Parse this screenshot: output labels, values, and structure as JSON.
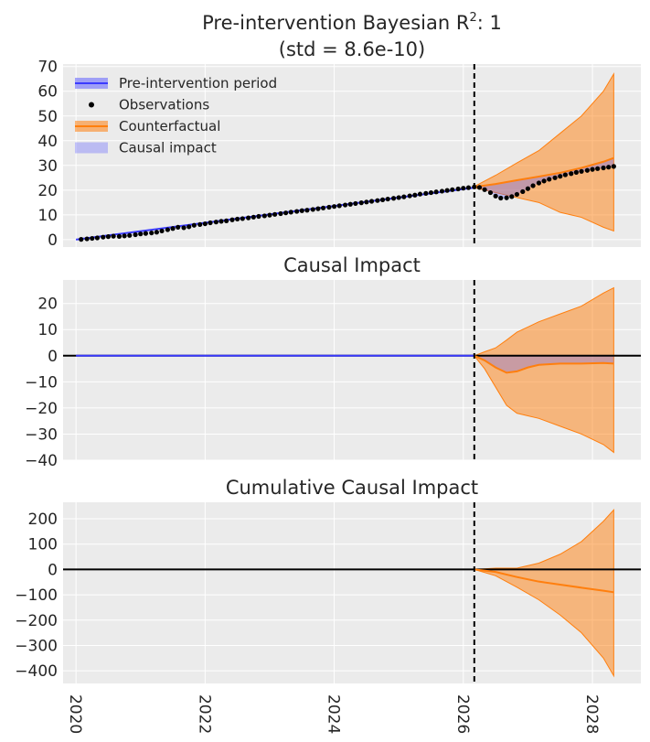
{
  "chart_data": [
    {
      "type": "line",
      "title_line1": "Pre-intervention Bayesian R",
      "title_sup": "2",
      "title_suffix": ": 1",
      "title_line2": "(std = 8.6e-10)",
      "xlim": [
        2019.8,
        2028.75
      ],
      "ylim": [
        -3,
        71
      ],
      "yticks": [
        0,
        10,
        20,
        30,
        40,
        50,
        60,
        70
      ],
      "intervention_x": 2026.17,
      "legend": {
        "position": "top-left",
        "entries": [
          "Pre-intervention period",
          "Observations",
          "Counterfactual",
          "Causal impact"
        ]
      },
      "series": [
        {
          "name": "Pre-intervention period",
          "x": [
            2020.0,
            2026.17
          ],
          "y": [
            0,
            21
          ],
          "color": "#3b3bff"
        },
        {
          "name": "Observations",
          "x": [
            2020.08,
            2020.17,
            2020.25,
            2020.33,
            2020.42,
            2020.5,
            2020.58,
            2020.67,
            2020.75,
            2020.83,
            2020.92,
            2021.0,
            2021.08,
            2021.17,
            2021.25,
            2021.33,
            2021.42,
            2021.5,
            2021.58,
            2021.67,
            2021.75,
            2021.83,
            2021.92,
            2022.0,
            2022.08,
            2022.17,
            2022.25,
            2022.33,
            2022.42,
            2022.5,
            2022.58,
            2022.67,
            2022.75,
            2022.83,
            2022.92,
            2023.0,
            2023.08,
            2023.17,
            2023.25,
            2023.33,
            2023.42,
            2023.5,
            2023.58,
            2023.67,
            2023.75,
            2023.83,
            2023.92,
            2024.0,
            2024.08,
            2024.17,
            2024.25,
            2024.33,
            2024.42,
            2024.5,
            2024.58,
            2024.67,
            2024.75,
            2024.83,
            2024.92,
            2025.0,
            2025.08,
            2025.17,
            2025.25,
            2025.33,
            2025.42,
            2025.5,
            2025.58,
            2025.67,
            2025.75,
            2025.83,
            2025.92,
            2026.0,
            2026.08,
            2026.17,
            2026.25,
            2026.33,
            2026.42,
            2026.5,
            2026.58,
            2026.67,
            2026.75,
            2026.83,
            2026.92,
            2027.0,
            2027.08,
            2027.17,
            2027.25,
            2027.33,
            2027.42,
            2027.5,
            2027.58,
            2027.67,
            2027.75,
            2027.83,
            2027.92,
            2028.0,
            2028.08,
            2028.17,
            2028.25,
            2028.33
          ],
          "y": [
            0.1,
            0.3,
            0.5,
            0.7,
            1.0,
            1.2,
            1.4,
            1.3,
            1.5,
            1.7,
            2.0,
            2.3,
            2.5,
            2.7,
            3.0,
            3.5,
            4.0,
            4.5,
            5.0,
            4.8,
            5.2,
            5.8,
            6.1,
            6.4,
            6.8,
            7.1,
            7.4,
            7.6,
            8.0,
            8.3,
            8.5,
            8.8,
            9.1,
            9.4,
            9.6,
            9.9,
            10.2,
            10.5,
            10.8,
            11.1,
            11.4,
            11.7,
            11.9,
            12.2,
            12.5,
            12.8,
            13.1,
            13.4,
            13.7,
            14.0,
            14.3,
            14.6,
            14.9,
            15.2,
            15.5,
            15.8,
            16.1,
            16.4,
            16.7,
            17.0,
            17.3,
            17.7,
            18.0,
            18.4,
            18.7,
            19.0,
            19.3,
            19.6,
            19.9,
            20.2,
            20.5,
            20.8,
            21.0,
            21.3,
            21.1,
            20.2,
            19.0,
            17.6,
            16.8,
            16.9,
            17.4,
            18.3,
            19.4,
            20.6,
            21.8,
            22.9,
            23.7,
            24.4,
            25.0,
            25.6,
            26.2,
            26.7,
            27.2,
            27.6,
            28.0,
            28.4,
            28.7,
            29.0,
            29.3,
            29.6
          ],
          "color": "#000000"
        },
        {
          "name": "Counterfactual",
          "x": [
            2026.17,
            2026.5,
            2026.83,
            2027.17,
            2027.5,
            2027.83,
            2028.17,
            2028.33
          ],
          "y": [
            21.3,
            22.5,
            24.0,
            25.5,
            27.0,
            29.0,
            31.5,
            33.0
          ],
          "lower": [
            21.0,
            19.0,
            17.0,
            15.0,
            11.0,
            9.0,
            5.0,
            3.5
          ],
          "upper": [
            21.5,
            26.0,
            31.0,
            36.0,
            43.0,
            50.0,
            60.0,
            67.0
          ],
          "color": "#ff7f0e"
        }
      ]
    },
    {
      "type": "line",
      "title": "Causal Impact",
      "xlim": [
        2019.8,
        2028.75
      ],
      "ylim": [
        -40,
        29
      ],
      "yticks": [
        -40,
        -30,
        -20,
        -10,
        0,
        10,
        20
      ],
      "intervention_x": 2026.17,
      "series": [
        {
          "name": "Causal impact",
          "x": [
            2026.17,
            2026.33,
            2026.5,
            2026.67,
            2026.83,
            2027.0,
            2027.17,
            2027.5,
            2027.83,
            2028.17,
            2028.33
          ],
          "y": [
            0,
            -1.8,
            -4.5,
            -6.5,
            -6.0,
            -4.5,
            -3.5,
            -3.0,
            -3.0,
            -2.8,
            -3.0
          ],
          "lower": [
            0,
            -5.0,
            -12.0,
            -19.0,
            -22.0,
            -23.0,
            -24.0,
            -27.0,
            -30.0,
            -34.0,
            -37.0
          ],
          "upper": [
            0,
            1.5,
            3.0,
            6.0,
            9.0,
            11.0,
            13.0,
            16.0,
            19.0,
            24.0,
            26.0
          ],
          "color": "#ff7f0e"
        }
      ]
    },
    {
      "type": "line",
      "title": "Cumulative Causal Impact",
      "xlim": [
        2019.8,
        2028.75
      ],
      "ylim": [
        -450,
        265
      ],
      "yticks": [
        -400,
        -300,
        -200,
        -100,
        0,
        100,
        200
      ],
      "xticks": [
        2020,
        2022,
        2024,
        2026,
        2028
      ],
      "intervention_x": 2026.17,
      "series": [
        {
          "name": "Cumulative causal impact",
          "x": [
            2026.17,
            2026.5,
            2026.83,
            2027.17,
            2027.5,
            2027.83,
            2028.17,
            2028.33
          ],
          "y": [
            0,
            -10,
            -30,
            -48,
            -60,
            -72,
            -84,
            -90
          ],
          "lower": [
            0,
            -25,
            -70,
            -120,
            -180,
            -250,
            -350,
            -420
          ],
          "upper": [
            0,
            5,
            5,
            25,
            60,
            110,
            190,
            235
          ],
          "color": "#ff7f0e"
        }
      ]
    }
  ]
}
